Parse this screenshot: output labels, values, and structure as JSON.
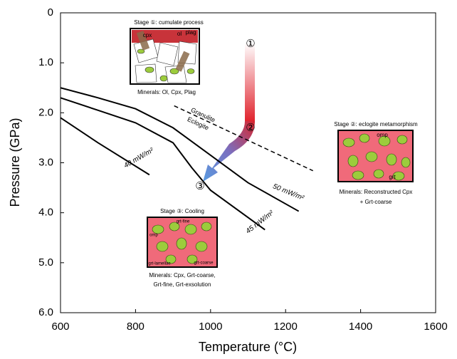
{
  "chart_data": {
    "type": "line",
    "xlabel": "Temperature (°C)",
    "ylabel": "Pressure (GPa)",
    "xlim": [
      600,
      1600
    ],
    "ylim": [
      0,
      6
    ],
    "y_inverted": true,
    "xticks": [
      600,
      800,
      1000,
      1200,
      1400,
      1600
    ],
    "yticks": [
      0,
      {
        "value": 1,
        "label": "1.0"
      },
      {
        "value": 2,
        "label": "2.0"
      },
      {
        "value": 3,
        "label": "3.0"
      },
      {
        "value": 4,
        "label": "4.0"
      },
      {
        "value": 5,
        "label": "5.0"
      },
      {
        "value": 6,
        "label": "6.0"
      }
    ],
    "series": [
      {
        "name": "50 mW/m²",
        "color": "#000000",
        "x": [
          600,
          700,
          800,
          900,
          1000,
          1100,
          1235
        ],
        "values": [
          1.5,
          1.7,
          1.92,
          2.3,
          2.85,
          3.4,
          3.97
        ]
      },
      {
        "name": "45 mW/m²",
        "color": "#000000",
        "x": [
          600,
          700,
          800,
          900,
          950,
          1000,
          1145
        ],
        "values": [
          1.7,
          1.95,
          2.2,
          2.6,
          3.1,
          3.55,
          4.34
        ]
      },
      {
        "name": "40 mW/m²",
        "color": "#000000",
        "x": [
          600,
          700,
          837
        ],
        "values": [
          2.1,
          2.6,
          3.24
        ]
      }
    ],
    "boundary": {
      "labels": [
        "Granulite",
        "Eclogite"
      ],
      "color": "#000000",
      "x": [
        903,
        1273
      ],
      "values": [
        1.86,
        3.16
      ]
    },
    "path_labels": [
      "①",
      "②",
      "③"
    ],
    "insets": [
      {
        "title": "Stage ①: cumulate process",
        "labels": [
          "cpx",
          "ol",
          "plag"
        ],
        "minerals": [
          "Minerals: Ol, Cpx, Plag"
        ]
      },
      {
        "title": "Stage ②: eclogite metamorphism",
        "labels": [
          "omp",
          "grt"
        ],
        "minerals": [
          "Minerals: Reconstructed Cpx",
          "+ Grt-coarse"
        ]
      },
      {
        "title": "Stage ③: Cooling",
        "labels": [
          "grt-fine",
          "omp",
          "grt-lamellae",
          "grt-coarse"
        ],
        "minerals": [
          "Minerals: Cpx, Grt-coarse,",
          "Grt-fine, Grt-exsolution"
        ]
      }
    ]
  }
}
